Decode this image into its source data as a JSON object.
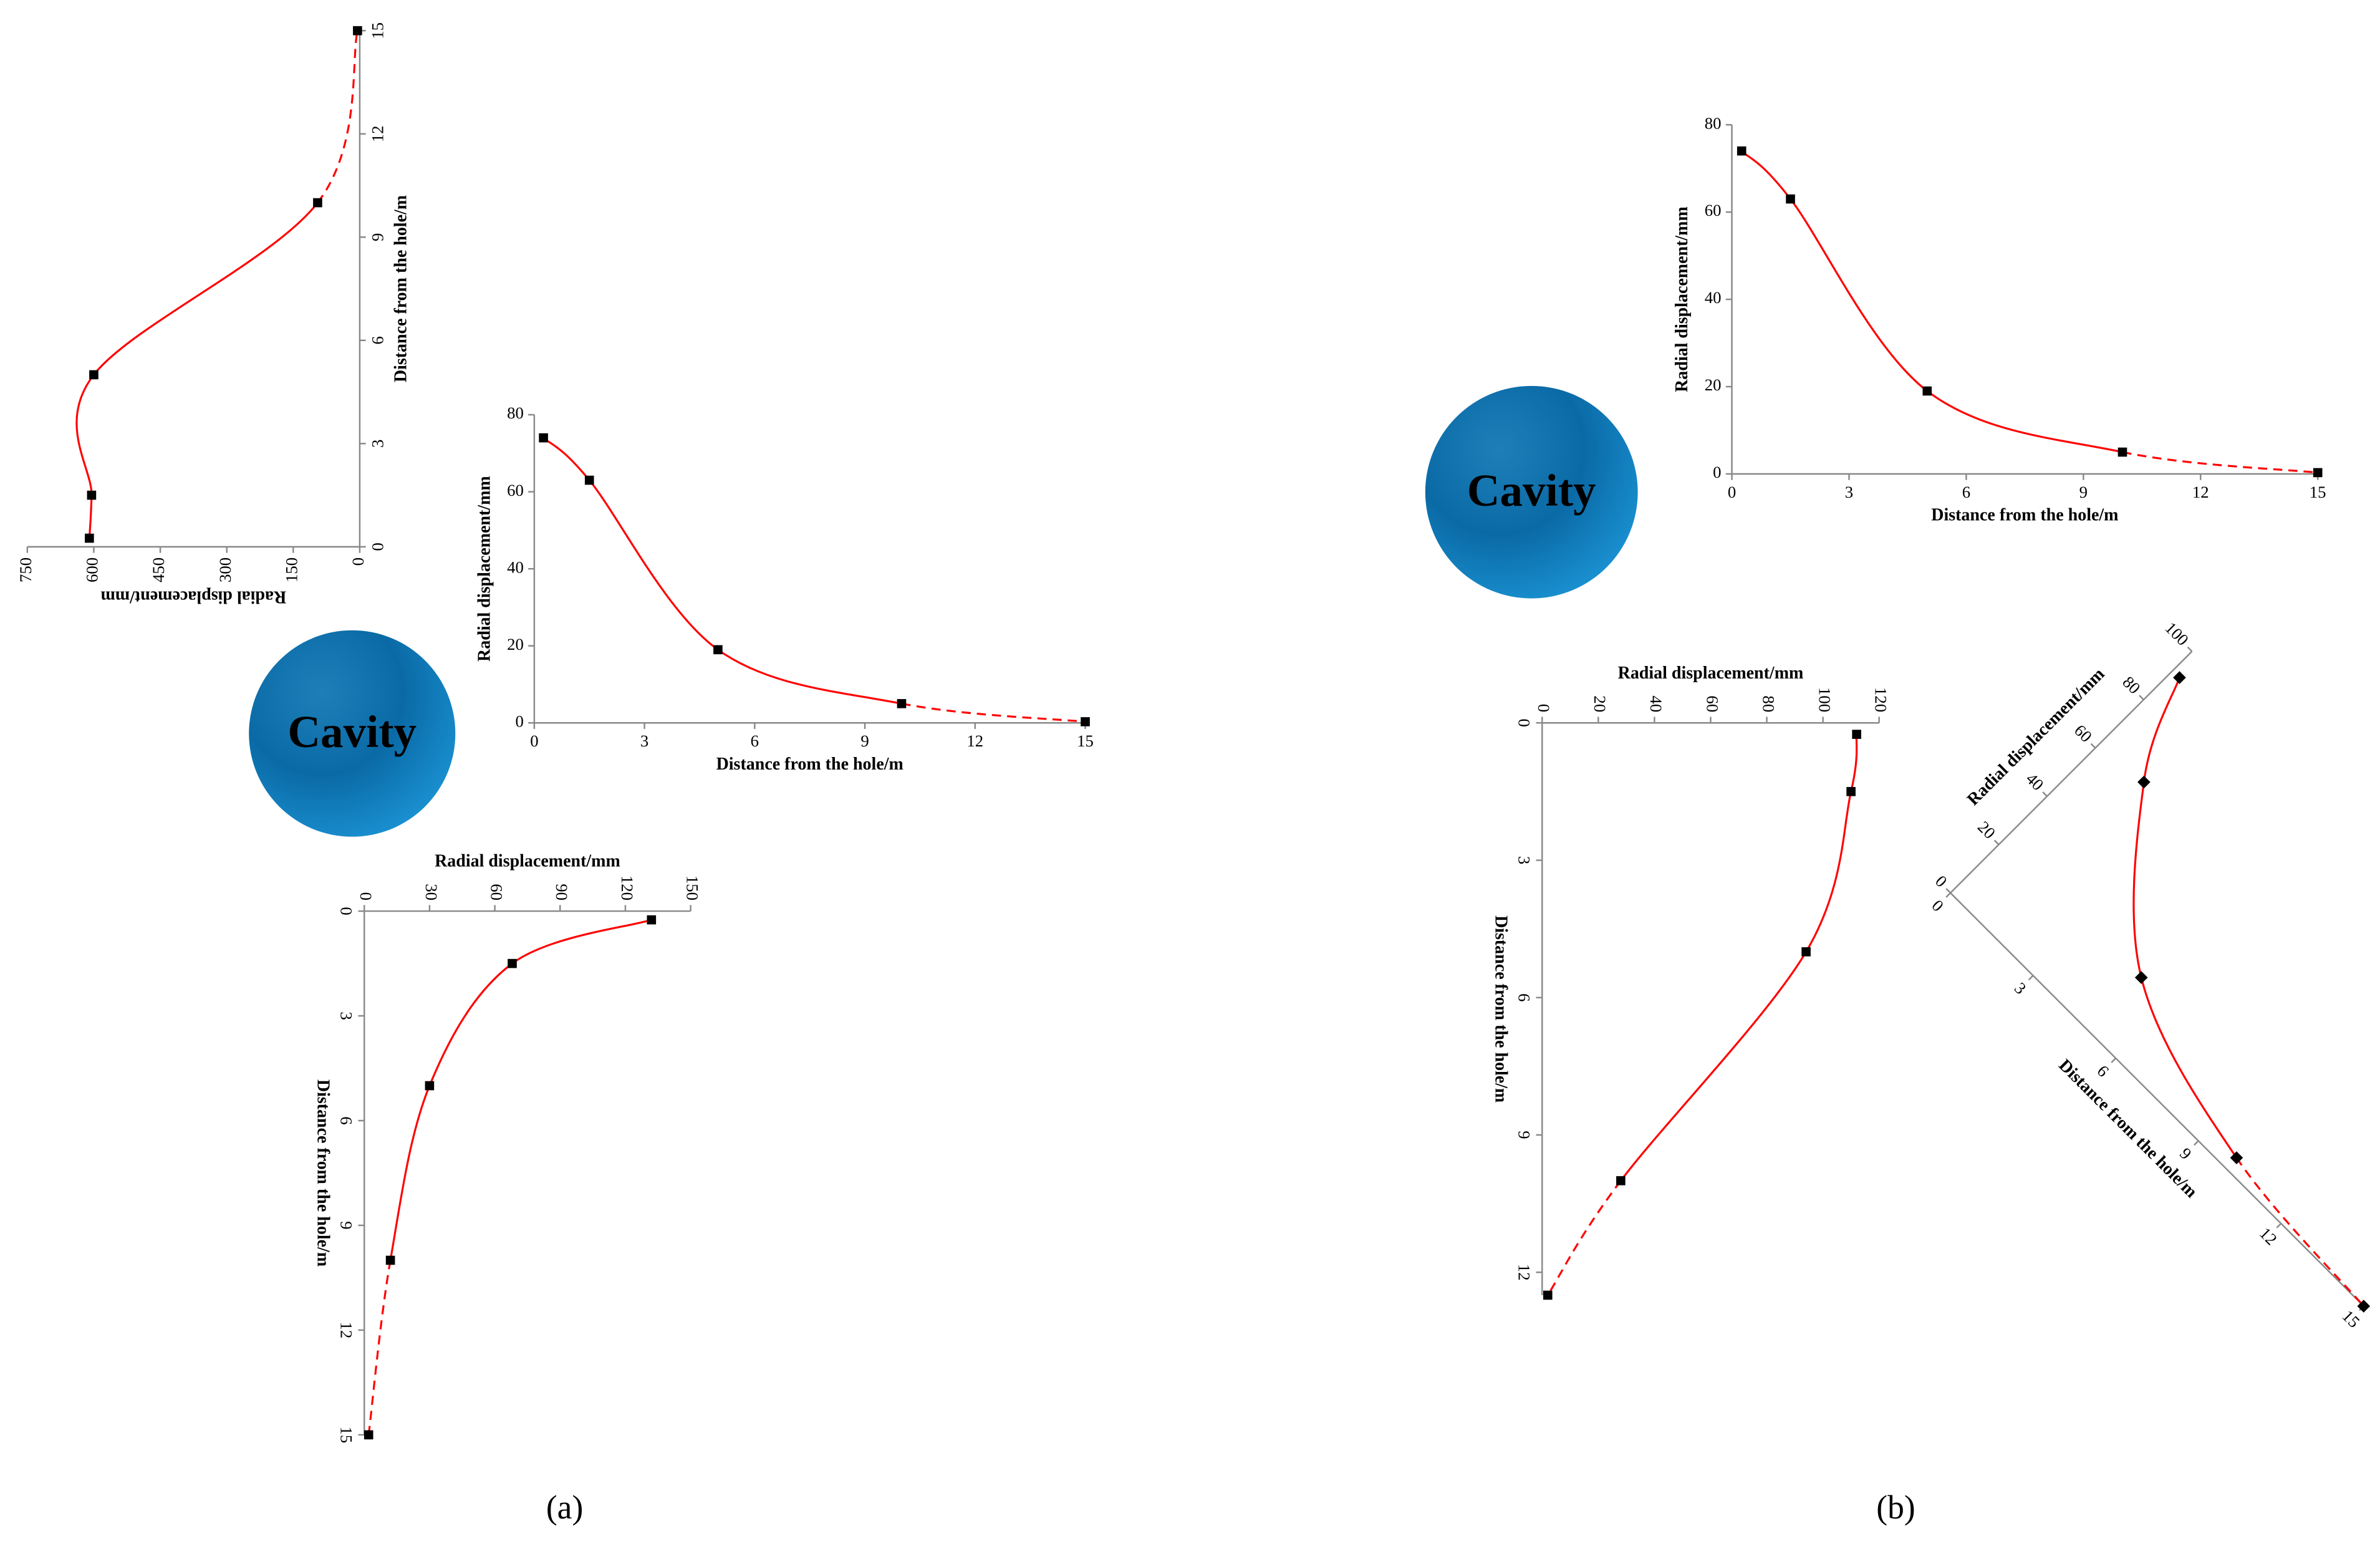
{
  "chart_data": [
    {
      "type": "line",
      "x_label": "Distance from the hole/m",
      "y_label": "Radial displacement/mm",
      "x": [
        0.25,
        1.5,
        5,
        10,
        15
      ],
      "values": [
        610,
        605,
        600,
        95,
        5
      ],
      "color": "#ff0000",
      "xlim": [
        0,
        15
      ],
      "xticks": [
        0,
        3,
        6,
        9,
        12,
        15
      ],
      "ylim": [
        0,
        750
      ],
      "yticks": [
        0,
        150,
        300,
        450,
        600,
        750
      ]
    },
    {
      "type": "line",
      "x_label": "Distance from the hole/m",
      "y_label": "Radial displacement/mm",
      "x": [
        0.25,
        1.5,
        5,
        10,
        15
      ],
      "values": [
        74,
        63,
        19,
        5,
        0.3
      ],
      "color": "#ff0000",
      "xlim": [
        0,
        15
      ],
      "xticks": [
        0,
        3,
        6,
        9,
        12,
        15
      ],
      "ylim": [
        0,
        80
      ],
      "yticks": [
        0,
        20,
        40,
        60,
        80
      ]
    },
    {
      "type": "line",
      "x_label": "Distance from the hole/m",
      "y_label": "Radial displacement/mm",
      "x": [
        0.25,
        1.5,
        5,
        10,
        15
      ],
      "values": [
        132,
        68,
        30,
        12,
        2
      ],
      "color": "#ff0000",
      "xlim": [
        0,
        15
      ],
      "xticks": [
        0,
        3,
        6,
        9,
        12,
        15
      ],
      "ylim": [
        0,
        150
      ],
      "yticks": [
        0,
        30,
        60,
        90,
        120,
        150
      ]
    },
    {
      "type": "line",
      "x_label": "Distance from the hole/m",
      "y_label": "Radial displacement/mm",
      "x": [
        0.25,
        1.5,
        5,
        10,
        15
      ],
      "values": [
        74,
        63,
        19,
        5,
        0.3
      ],
      "color": "#ff0000",
      "xlim": [
        0,
        15
      ],
      "xticks": [
        0,
        3,
        6,
        9,
        12,
        15
      ],
      "ylim": [
        0,
        80
      ],
      "yticks": [
        0,
        20,
        40,
        60,
        80
      ]
    },
    {
      "type": "line",
      "x_label": "Distance from the hole/m",
      "y_label": "Radial displacement/mm",
      "x": [
        0.25,
        1.5,
        5,
        10,
        12.5
      ],
      "values": [
        112,
        110,
        94,
        28,
        2
      ],
      "color": "#ff0000",
      "xlim": [
        0,
        12.5
      ],
      "xticks": [
        0,
        3,
        6,
        9,
        12
      ],
      "ylim": [
        0,
        120
      ],
      "yticks": [
        0,
        20,
        40,
        60,
        80,
        100,
        120
      ]
    },
    {
      "type": "line",
      "x_label": "Distance from the hole/m",
      "y_label": "Radial displacement/mm",
      "x": [
        0.25,
        1.5,
        5,
        10,
        15
      ],
      "values": [
        92,
        63,
        22,
        4.4,
        0
      ],
      "color": "#ff0000",
      "xlim": [
        0,
        15
      ],
      "xticks": [
        0,
        3,
        6,
        9,
        12,
        15
      ],
      "ylim": [
        0,
        100
      ],
      "yticks": [
        0,
        20,
        40,
        60,
        80,
        100
      ]
    }
  ],
  "panels": [
    {
      "label": "(a)",
      "cavity": "Cavity"
    },
    {
      "label": "(b)",
      "cavity": "Cavity"
    }
  ]
}
